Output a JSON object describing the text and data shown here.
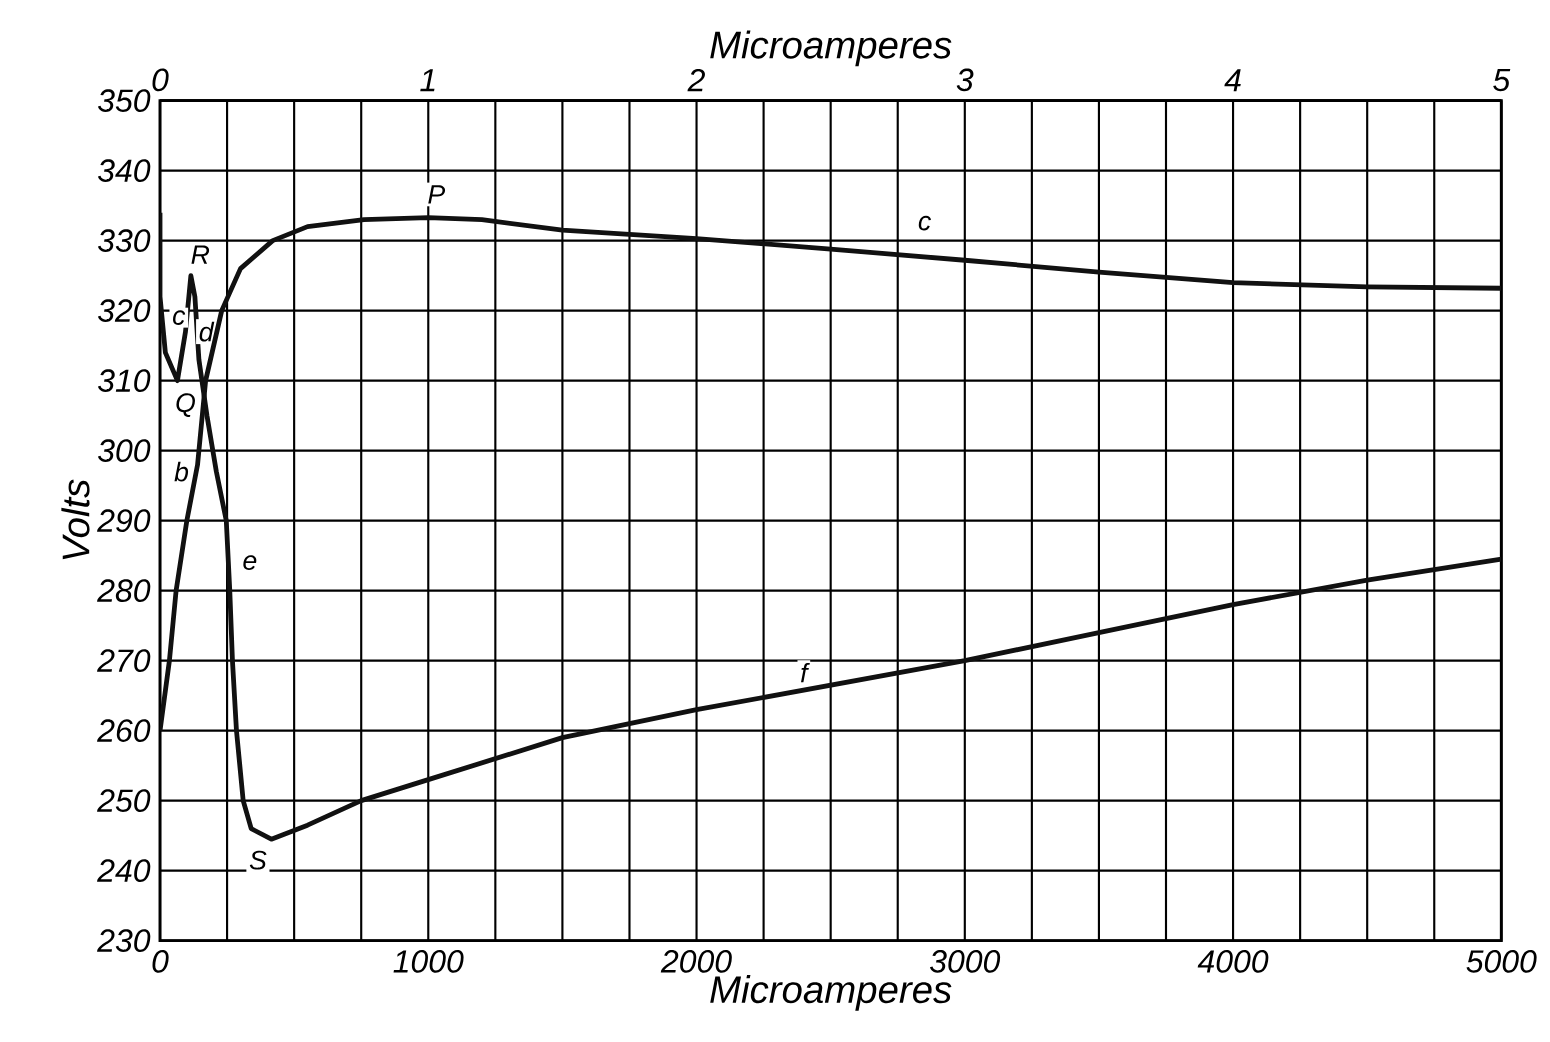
{
  "chart_data": {
    "type": "line",
    "xlabel": "Microamperes",
    "x2label": "Microamperes",
    "ylabel": "Volts",
    "xlim": [
      0,
      5000
    ],
    "xticks": [
      0,
      {
        "value": 250,
        "label": null
      },
      {
        "value": 500,
        "label": null
      },
      {
        "value": 750,
        "label": null
      },
      1000,
      {
        "value": 1250,
        "label": null
      },
      {
        "value": 1500,
        "label": null
      },
      {
        "value": 1750,
        "label": null
      },
      2000,
      {
        "value": 2250,
        "label": null
      },
      {
        "value": 2500,
        "label": null
      },
      {
        "value": 2750,
        "label": null
      },
      3000,
      {
        "value": 3250,
        "label": null
      },
      {
        "value": 3500,
        "label": null
      },
      {
        "value": 3750,
        "label": null
      },
      4000,
      {
        "value": 4250,
        "label": null
      },
      {
        "value": 4500,
        "label": null
      },
      {
        "value": 4750,
        "label": null
      },
      5000
    ],
    "x2lim": [
      0,
      5
    ],
    "x2ticks": [
      0,
      1,
      2,
      3,
      4,
      5
    ],
    "ylim": [
      230,
      350
    ],
    "yticks": [
      230,
      240,
      250,
      260,
      270,
      280,
      290,
      300,
      310,
      320,
      330,
      340,
      350
    ],
    "grid": true,
    "marker": "none",
    "line_style": "solid",
    "series": [
      {
        "color": "#111111",
        "axis": "x2",
        "x": [
          0,
          0.035,
          0.06,
          0.1,
          0.14,
          0.17,
          0.23,
          0.3,
          0.42,
          0.55,
          0.76,
          1.0,
          1.2,
          1.5,
          2.0,
          2.5,
          3.0,
          3.5,
          4.0,
          4.5,
          5.0
        ],
        "values": [
          260,
          270,
          280,
          290,
          298,
          310,
          320,
          326,
          330,
          332,
          333,
          333.3,
          333,
          331.5,
          330.3,
          328.8,
          327.2,
          325.5,
          324,
          323.4,
          323.2
        ]
      },
      {
        "color": "#111111",
        "x": [
          0,
          0,
          20,
          65,
          95,
          115,
          130,
          145,
          175,
          210,
          247,
          260,
          270,
          285,
          310,
          340,
          415,
          550,
          750,
          1000,
          1500,
          2000,
          2500,
          3000,
          3500,
          4000,
          4500,
          5000
        ],
        "values": [
          334,
          322,
          314,
          310,
          317,
          325,
          322,
          313,
          305,
          297,
          290,
          280,
          270,
          260,
          250,
          246,
          244.5,
          246.5,
          250,
          253,
          259,
          263,
          266.5,
          270,
          274,
          278,
          281.5,
          284.5
        ]
      }
    ],
    "annotations": [
      {
        "text": "P",
        "x": 1030,
        "y": 336.6
      },
      {
        "text": "R",
        "x": 150,
        "y": 328
      },
      {
        "text": "c",
        "x": 70,
        "y": 319
      },
      {
        "text": "d",
        "x": 172,
        "y": 317
      },
      {
        "text": "Q",
        "x": 95,
        "y": 306.5
      },
      {
        "text": "b",
        "x": 80,
        "y": 297
      },
      {
        "text": "e",
        "x": 335,
        "y": 284
      },
      {
        "text": "S",
        "x": 365,
        "y": 241.5
      },
      {
        "text": "f",
        "x": 2400,
        "y": 268.3
      },
      {
        "text": "c",
        "x": 2850,
        "y": 332.5
      }
    ]
  }
}
